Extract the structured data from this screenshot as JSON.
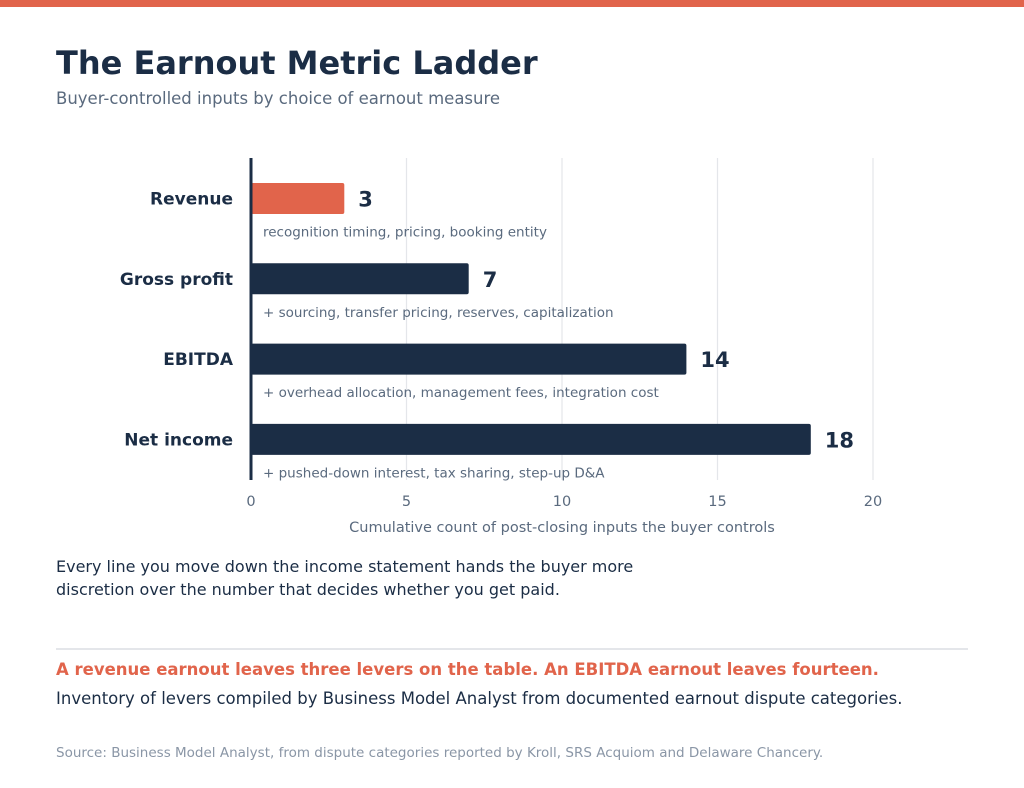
{
  "colors": {
    "accent": "#e1644b",
    "primary": "#1b2d45",
    "muted": "#5a6a7e",
    "grid": "#e4e6ea",
    "source": "#8a96a6"
  },
  "header": {
    "title": "The Earnout Metric Ladder",
    "subtitle": "Buyer-controlled inputs by choice of earnout measure"
  },
  "chart_data": {
    "type": "bar",
    "orientation": "horizontal",
    "categories": [
      "Revenue",
      "Gross profit",
      "EBITDA",
      "Net income"
    ],
    "values": [
      3,
      7,
      14,
      18
    ],
    "annotations": [
      "recognition timing, pricing, booking entity",
      "+ sourcing, transfer pricing, reserves, capitalization",
      "+ overhead allocation, management fees, integration cost",
      "+ pushed-down interest, tax sharing, step-up D&A"
    ],
    "highlight_index": 0,
    "xlabel": "Cumulative count of post-closing inputs the buyer controls",
    "xlim": [
      0,
      20
    ],
    "xticks": [
      0,
      5,
      10,
      15,
      20
    ],
    "grid": true
  },
  "body": {
    "paragraph": "Every line you move down the income statement hands the buyer more discretion over the number that decides whether you get paid."
  },
  "footer": {
    "highlight": "A revenue earnout leaves three levers on the table. An EBITDA earnout leaves fourteen.",
    "note": "Inventory of levers compiled by Business Model Analyst from documented earnout dispute categories.",
    "source": "Source: Business Model Analyst, from dispute categories reported by Kroll, SRS Acquiom and Delaware Chancery."
  }
}
